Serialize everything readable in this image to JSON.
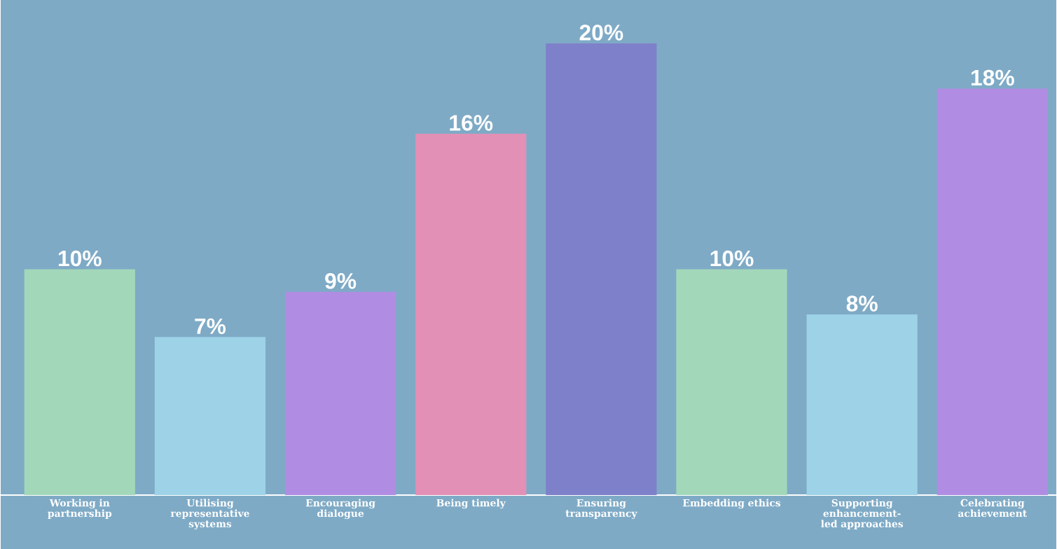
{
  "chart_data": {
    "type": "bar",
    "categories": [
      "Working in partnership",
      "Utilising representative systems",
      "Encouraging dialogue",
      "Being timely",
      "Ensuring transparency",
      "Embedding ethics",
      "Supporting enhancement-led approaches",
      "Celebrating achievement"
    ],
    "values": [
      10,
      7,
      9,
      16,
      20,
      10,
      8,
      18
    ],
    "colors": [
      "#a2d8b9",
      "#9dd2e7",
      "#b08de2",
      "#e290b6",
      "#7f80ca",
      "#a2d8b9",
      "#9dd2e7",
      "#b08de2"
    ],
    "value_labels": [
      "10%",
      "7%",
      "9%",
      "16%",
      "20%",
      "10%",
      "8%",
      "18%"
    ]
  }
}
